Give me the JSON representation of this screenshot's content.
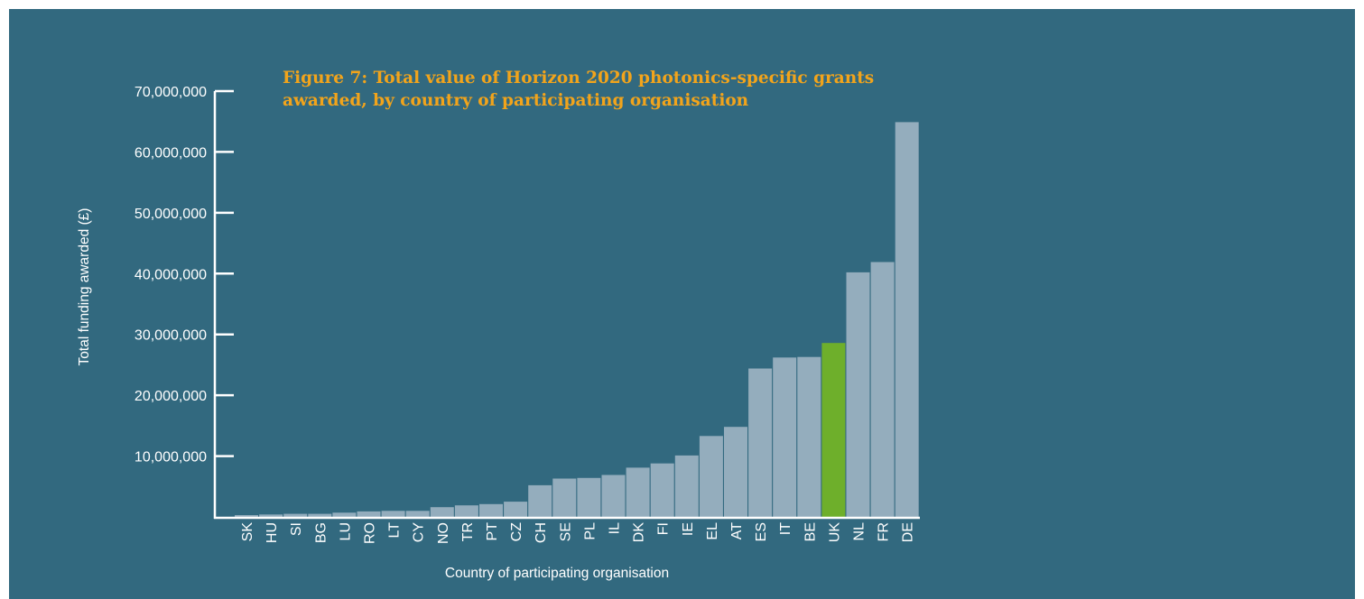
{
  "chart_data": {
    "type": "bar",
    "title": "Figure 7: Total value of Horizon 2020 photonics-specific grants awarded, by country of participating organisation",
    "xlabel": "Country of participating organisation",
    "ylabel": "Total funding awarded (£)",
    "ylim": [
      0,
      70000000
    ],
    "yticks": [
      10000000,
      20000000,
      30000000,
      40000000,
      50000000,
      60000000,
      70000000
    ],
    "ytick_labels": [
      "10,000,000",
      "20,000,000",
      "30,000,000",
      "40,000,000",
      "50,000,000",
      "60,000,000",
      "70,000,000"
    ],
    "grid": false,
    "categories": [
      "SK",
      "HU",
      "SI",
      "BG",
      "LU",
      "RO",
      "LT",
      "CY",
      "NO",
      "TR",
      "PT",
      "CZ",
      "CH",
      "SE",
      "PL",
      "IL",
      "DK",
      "FI",
      "IE",
      "EL",
      "AT",
      "ES",
      "IT",
      "BE",
      "UK",
      "NL",
      "FR",
      "DE"
    ],
    "values": [
      300000,
      400000,
      500000,
      500000,
      700000,
      900000,
      1000000,
      1000000,
      1600000,
      1900000,
      2100000,
      2500000,
      5200000,
      6300000,
      6400000,
      6900000,
      8100000,
      8800000,
      10100000,
      13300000,
      14800000,
      24400000,
      26200000,
      26300000,
      28600000,
      40200000,
      41900000,
      64900000
    ],
    "highlight": "UK",
    "colors": {
      "bar": "#94adbd",
      "highlight": "#6eaf2b",
      "background": "#32697f",
      "title": "#f2a41b",
      "axis": "#ffffff"
    }
  }
}
